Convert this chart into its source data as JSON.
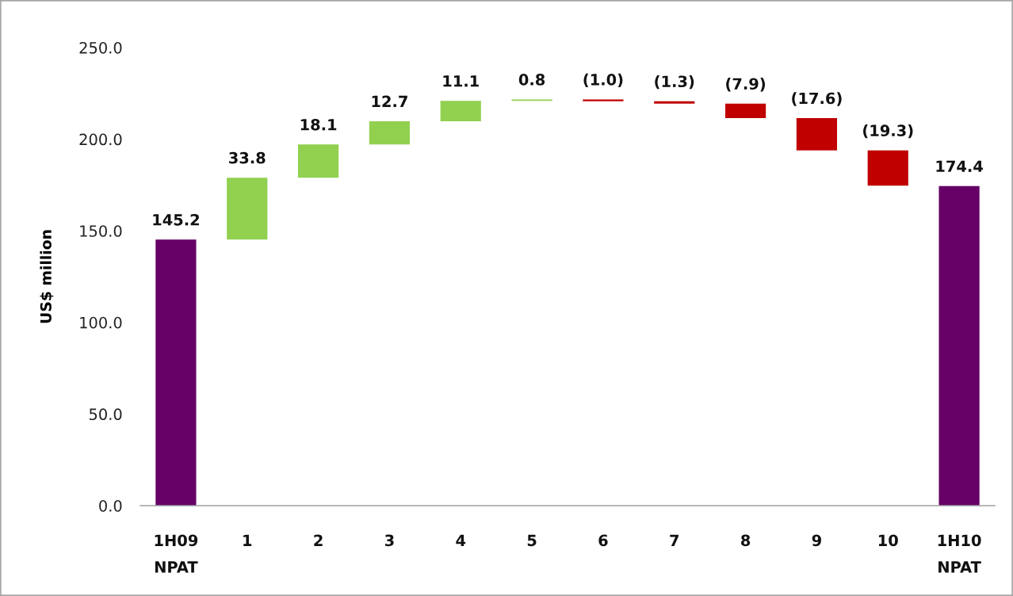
{
  "chart_data": {
    "type": "bar",
    "ylabel": "US$ million",
    "categories": [
      "1H09\nNPAT",
      "1",
      "2",
      "3",
      "4",
      "5",
      "6",
      "7",
      "8",
      "9",
      "10",
      "1H10\nNPAT"
    ],
    "values": [
      145.2,
      33.8,
      18.1,
      12.7,
      11.1,
      0.8,
      -1.0,
      -1.3,
      -7.9,
      -17.6,
      -19.3,
      174.4
    ],
    "base": [
      0,
      145.2,
      179.0,
      197.1,
      209.8,
      220.9,
      221.7,
      220.7,
      219.4,
      211.5,
      193.9,
      0
    ],
    "colors": [
      "#660066",
      "#92d050",
      "#92d050",
      "#92d050",
      "#92d050",
      "#92d050",
      "#c00000",
      "#c00000",
      "#c00000",
      "#c00000",
      "#c00000",
      "#660066"
    ],
    "value_labels": [
      "145.2",
      "33.8",
      "18.1",
      "12.7",
      "11.1",
      "0.8",
      "(1.0)",
      "(1.3)",
      "(7.9)",
      "(17.6)",
      "(19.3)",
      "174.4"
    ],
    "ylim": [
      0,
      250
    ],
    "yticks": [
      {
        "value": 0,
        "label": "0.0"
      },
      {
        "value": 50,
        "label": "50.0"
      },
      {
        "value": 100,
        "label": "100.0"
      },
      {
        "value": 150,
        "label": "150.0"
      },
      {
        "value": 200,
        "label": "200.0"
      },
      {
        "value": 250,
        "label": "250.0"
      }
    ]
  }
}
